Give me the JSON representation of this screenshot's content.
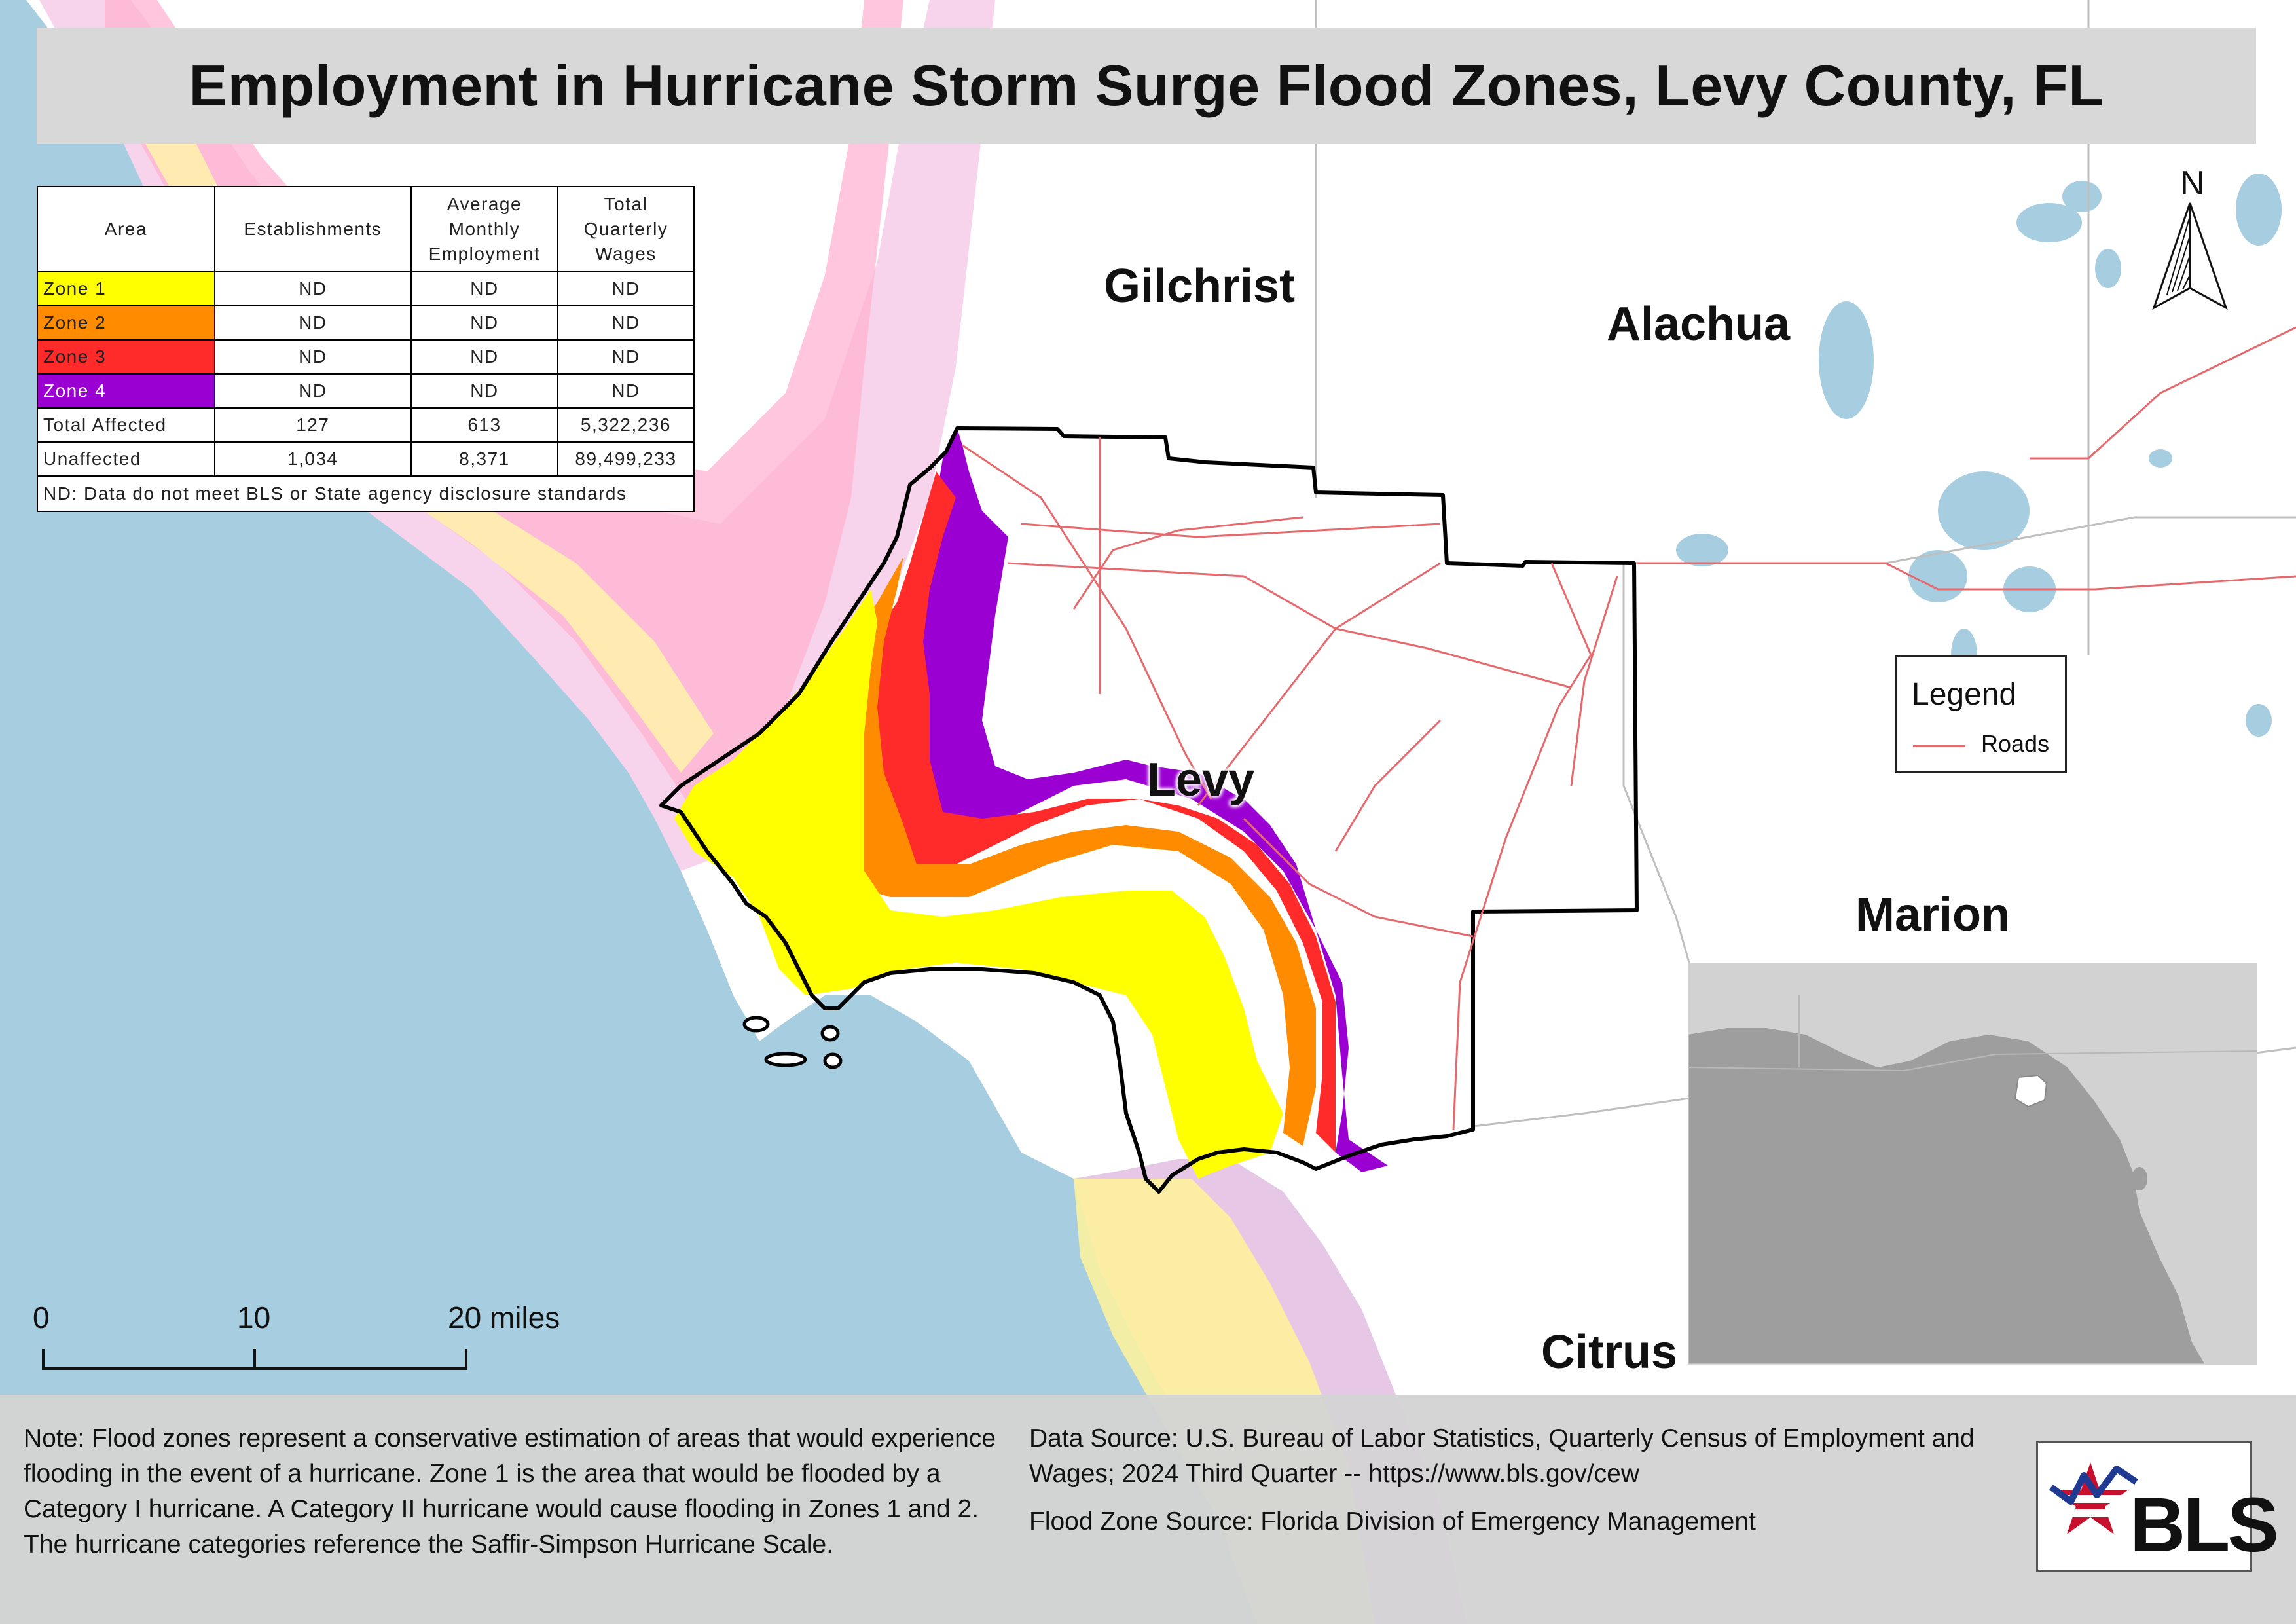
{
  "title": "Employment in Hurricane Storm Surge Flood Zones, Levy County, FL",
  "table": {
    "headers": [
      "Area",
      "Establishments",
      "Average Monthly Employment",
      "Total Quarterly Wages"
    ],
    "rows": [
      {
        "label": "Zone 1",
        "color": "#ffff00",
        "establishments": "ND",
        "employment": "ND",
        "wages": "ND"
      },
      {
        "label": "Zone 2",
        "color": "#ff8c00",
        "establishments": "ND",
        "employment": "ND",
        "wages": "ND"
      },
      {
        "label": "Zone 3",
        "color": "#ff2a2a",
        "establishments": "ND",
        "employment": "ND",
        "wages": "ND"
      },
      {
        "label": "Zone 4",
        "color": "#9b00d3",
        "establishments": "ND",
        "employment": "ND",
        "wages": "ND"
      },
      {
        "label": "Total Affected",
        "color": "#ffffff",
        "establishments": "127",
        "employment": "613",
        "wages": "5,322,236"
      },
      {
        "label": "Unaffected",
        "color": "#ffffff",
        "establishments": "1,034",
        "employment": "8,371",
        "wages": "89,499,233"
      }
    ],
    "footnote": "ND: Data do not meet BLS or State agency disclosure standards"
  },
  "counties": {
    "gilchrist": "Gilchrist",
    "alachua": "Alachua",
    "levy": "Levy",
    "marion": "Marion",
    "citrus": "Citrus"
  },
  "legend": {
    "title": "Legend",
    "items": [
      {
        "label": "Roads",
        "color": "#e46a6e"
      }
    ]
  },
  "north_arrow": "N",
  "scale_bar": {
    "labels": [
      "0",
      "10",
      "20 miles"
    ]
  },
  "note": "Note: Flood zones represent a conservative estimation of areas that would experience flooding in the event of a hurricane. Zone 1 is the area that would be flooded by a Category I hurricane. A Category II hurricane would cause flooding in Zones 1 and 2. The hurricane categories reference the Saffir-Simpson Hurricane Scale.",
  "data_source": "Data Source: U.S. Bureau of Labor Statistics, Quarterly Census of Employment and Wages; 2024 Third Quarter -- https://www.bls.gov/cew",
  "flood_zone_source": "Flood Zone Source: Florida Division of Emergency Management",
  "logo_text": "BLS",
  "colors": {
    "water": "#a7cde0",
    "land": "#ffffff",
    "roads": "#e46a6e",
    "zone1": "#ffff00",
    "zone2": "#ff8c00",
    "zone3": "#ff2a2a",
    "zone4": "#9b00d3"
  }
}
